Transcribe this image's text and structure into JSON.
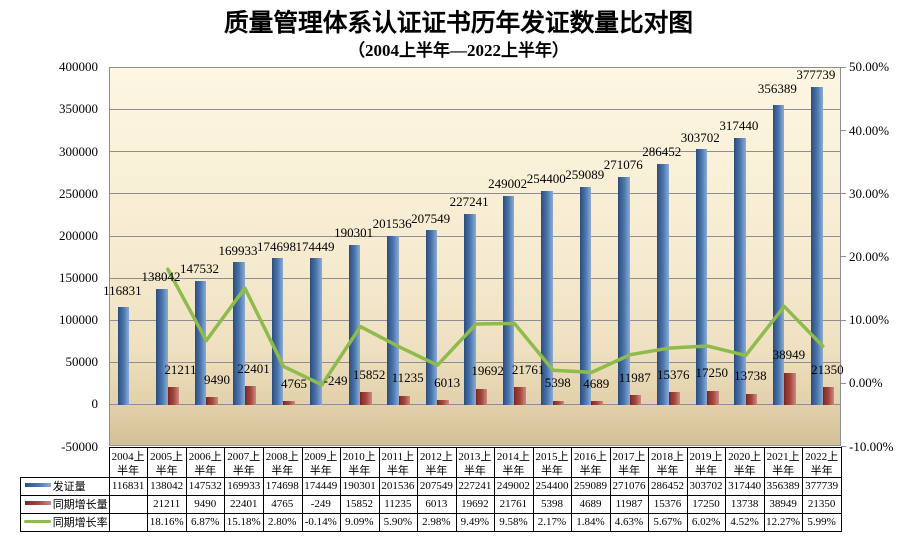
{
  "title": "质量管理体系认证证书历年发证数量比对图",
  "subtitle": "（2004上半年—2022上半年）",
  "chart_data": {
    "type": "combo",
    "title": "质量管理体系认证证书历年发证数量比对图",
    "subtitle": "（2004上半年—2022上半年）",
    "categories": [
      "2004上半年",
      "2005上半年",
      "2006上半年",
      "2007上半年",
      "2008上半年",
      "2009上半年",
      "2010上半年",
      "2011上半年",
      "2012上半年",
      "2013上半年",
      "2014上半年",
      "2015上半年",
      "2016上半年",
      "2017上半年",
      "2018上半年",
      "2019上半年",
      "2020上半年",
      "2021上半年",
      "2022上半年"
    ],
    "series": [
      {
        "name": "发证量",
        "type": "bar",
        "axis": "left",
        "color": "#4f81bd",
        "values": [
          116831,
          138042,
          147532,
          169933,
          174698,
          174449,
          190301,
          201536,
          207549,
          227241,
          249002,
          254400,
          259089,
          271076,
          286452,
          303702,
          317440,
          356389,
          377739
        ],
        "labels": [
          "116831",
          "138042",
          "147532",
          "169933",
          "174698",
          "174449",
          "190301",
          "201536",
          "207549",
          "227241",
          "249002",
          "254400",
          "259089",
          "271076",
          "286452",
          "303702",
          "317440",
          "356389",
          "377739"
        ]
      },
      {
        "name": "同期增长量",
        "type": "bar",
        "axis": "left",
        "color": "#c0504d",
        "values": [
          null,
          21211,
          9490,
          22401,
          4765,
          -249,
          15852,
          11235,
          6013,
          19692,
          21761,
          5398,
          4689,
          11987,
          15376,
          17250,
          13738,
          38949,
          21350
        ],
        "labels": [
          "",
          "21211",
          "9490",
          "22401",
          "4765",
          "-249",
          "15852",
          "11235",
          "6013",
          "19692",
          "21761",
          "5398",
          "4689",
          "11987",
          "15376",
          "17250",
          "13738",
          "38949",
          "21350"
        ]
      },
      {
        "name": "同期增长率",
        "type": "line",
        "axis": "right",
        "color": "#8fba4c",
        "values": [
          null,
          18.16,
          6.87,
          15.18,
          2.8,
          -0.14,
          9.09,
          5.9,
          2.98,
          9.49,
          9.58,
          2.17,
          1.84,
          4.63,
          5.67,
          6.02,
          4.52,
          12.27,
          5.99
        ],
        "labels": [
          "",
          "18.16%",
          "6.87%",
          "15.18%",
          "2.80%",
          "-0.14%",
          "9.09%",
          "5.90%",
          "2.98%",
          "9.49%",
          "9.58%",
          "2.17%",
          "1.84%",
          "4.63%",
          "5.67%",
          "6.02%",
          "4.52%",
          "12.27%",
          "5.99%"
        ]
      }
    ],
    "left_axis": {
      "min": -50000,
      "max": 400000,
      "step": 50000,
      "ticks": [
        "400000",
        "350000",
        "300000",
        "250000",
        "200000",
        "150000",
        "100000",
        "50000",
        "0",
        "-50000"
      ]
    },
    "right_axis": {
      "min": -10,
      "max": 50,
      "step": 10,
      "ticks": [
        "50.00%",
        "40.00%",
        "30.00%",
        "20.00%",
        "10.00%",
        "0.00%",
        "-10.00%"
      ]
    },
    "grid": true,
    "legend_position": "table-left",
    "colors": {
      "plot_bg_top": "#fdf6e2",
      "plot_bg_mid": "#f6ebd0",
      "plot_bg_mid2": "#eee0c0",
      "plot_bg_low": "#e2d1aa",
      "plot_bg_bottom": "#d3c096",
      "gridline": "#8d8d92",
      "table_border": "#000000",
      "bar1_gradient": [
        "#2a4b75",
        "#35598c",
        "#4a74ab",
        "#6f97c5",
        "#8dabd2"
      ],
      "bar2_gradient": [
        "#6f231f",
        "#8c322c",
        "#a2443c",
        "#bd6f69",
        "#cd8984"
      ],
      "line": "#8fba4c"
    }
  }
}
